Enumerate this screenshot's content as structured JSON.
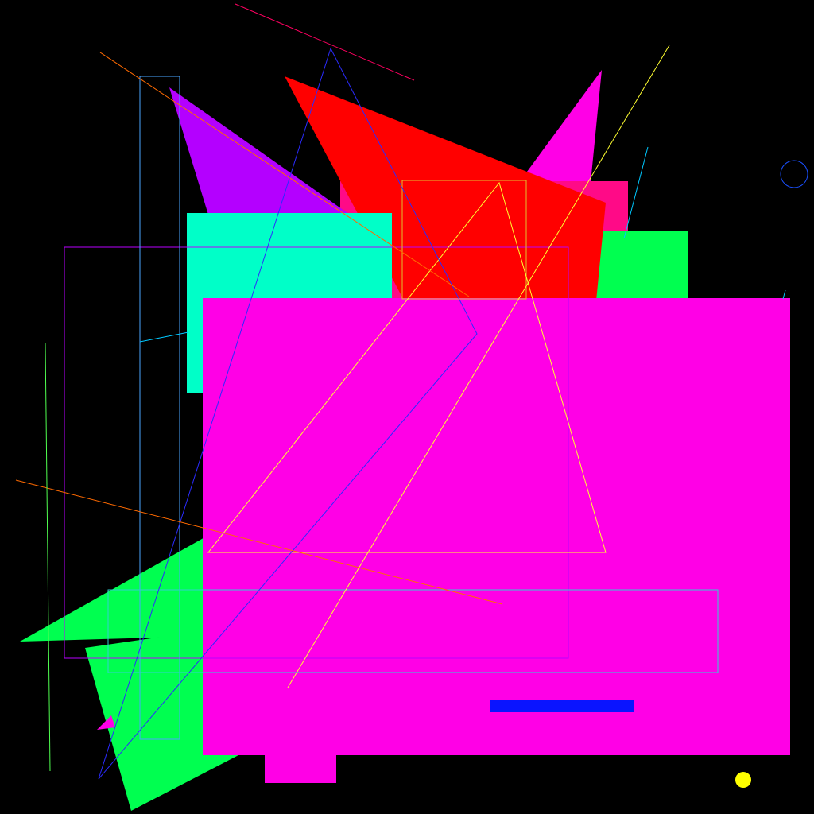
{
  "scene": {
    "background": "#000000",
    "palette": {
      "magenta": "#ff00e6",
      "red": "#ff0000",
      "hot_pink": "#ff0a87",
      "purple": "#b400ff",
      "aqua": "#00ffc8",
      "green": "#00ff50",
      "blue": "#0a14ff",
      "yellow": "#ffff00",
      "cyan_line": "#00c8ff",
      "yellow_line": "#ffff30",
      "orange_line": "#ff6a00",
      "violet_line": "#b800ff",
      "navy_line": "#2b2bff",
      "crimson_line": "#ff0060",
      "mint_line": "#50ff50",
      "outline_cyan": "#4aa6ff",
      "outline_teal": "#30d0d0",
      "outline_gold": "#e0c030",
      "circle_blue": "#1a50ff"
    }
  }
}
